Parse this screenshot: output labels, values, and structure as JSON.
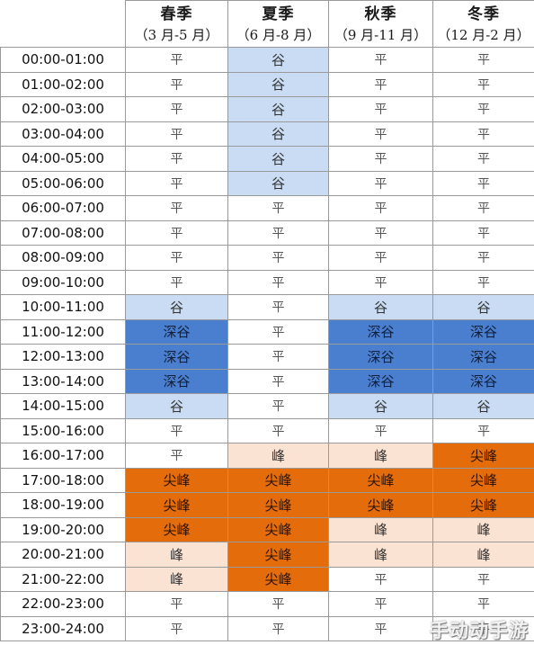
{
  "seasons": [
    {
      "name": "春季",
      "range": "（3 月-5 月）"
    },
    {
      "name": "夏季",
      "range": "（6 月-8 月）"
    },
    {
      "name": "秋季",
      "range": "（9 月-11 月）"
    },
    {
      "name": "冬季",
      "range": "（12 月-2 月）"
    }
  ],
  "legend": {
    "ping": "平",
    "gu": "谷",
    "shengu": "深谷",
    "feng": "峰",
    "jianfeng": "尖峰"
  },
  "colors": {
    "gu": "#c9dcf3",
    "shengu": "#4a7fd0",
    "feng": "#fbe3d3",
    "jianfeng": "#e46c0a"
  },
  "rows": [
    {
      "time": "00:00-01:00",
      "cells": [
        "平",
        "谷",
        "平",
        "平"
      ]
    },
    {
      "time": "01:00-02:00",
      "cells": [
        "平",
        "谷",
        "平",
        "平"
      ]
    },
    {
      "time": "02:00-03:00",
      "cells": [
        "平",
        "谷",
        "平",
        "平"
      ]
    },
    {
      "time": "03:00-04:00",
      "cells": [
        "平",
        "谷",
        "平",
        "平"
      ]
    },
    {
      "time": "04:00-05:00",
      "cells": [
        "平",
        "谷",
        "平",
        "平"
      ]
    },
    {
      "time": "05:00-06:00",
      "cells": [
        "平",
        "谷",
        "平",
        "平"
      ]
    },
    {
      "time": "06:00-07:00",
      "cells": [
        "平",
        "平",
        "平",
        "平"
      ]
    },
    {
      "time": "07:00-08:00",
      "cells": [
        "平",
        "平",
        "平",
        "平"
      ]
    },
    {
      "time": "08:00-09:00",
      "cells": [
        "平",
        "平",
        "平",
        "平"
      ]
    },
    {
      "time": "09:00-10:00",
      "cells": [
        "平",
        "平",
        "平",
        "平"
      ]
    },
    {
      "time": "10:00-11:00",
      "cells": [
        "谷",
        "平",
        "谷",
        "谷"
      ]
    },
    {
      "time": "11:00-12:00",
      "cells": [
        "深谷",
        "平",
        "深谷",
        "深谷"
      ]
    },
    {
      "time": "12:00-13:00",
      "cells": [
        "深谷",
        "平",
        "深谷",
        "深谷"
      ]
    },
    {
      "time": "13:00-14:00",
      "cells": [
        "深谷",
        "平",
        "深谷",
        "深谷"
      ]
    },
    {
      "time": "14:00-15:00",
      "cells": [
        "谷",
        "平",
        "谷",
        "谷"
      ]
    },
    {
      "time": "15:00-16:00",
      "cells": [
        "平",
        "平",
        "平",
        "平"
      ]
    },
    {
      "time": "16:00-17:00",
      "cells": [
        "平",
        "峰",
        "峰",
        "尖峰"
      ]
    },
    {
      "time": "17:00-18:00",
      "cells": [
        "尖峰",
        "尖峰",
        "尖峰",
        "尖峰"
      ]
    },
    {
      "time": "18:00-19:00",
      "cells": [
        "尖峰",
        "尖峰",
        "尖峰",
        "尖峰"
      ]
    },
    {
      "time": "19:00-20:00",
      "cells": [
        "尖峰",
        "尖峰",
        "峰",
        "峰"
      ]
    },
    {
      "time": "20:00-21:00",
      "cells": [
        "峰",
        "尖峰",
        "峰",
        "峰"
      ]
    },
    {
      "time": "21:00-22:00",
      "cells": [
        "峰",
        "尖峰",
        "平",
        "平"
      ]
    },
    {
      "time": "22:00-23:00",
      "cells": [
        "平",
        "平",
        "平",
        "平"
      ]
    },
    {
      "time": "23:00-24:00",
      "cells": [
        "平",
        "平",
        "平",
        "平"
      ]
    }
  ],
  "watermark": "手动动手游"
}
